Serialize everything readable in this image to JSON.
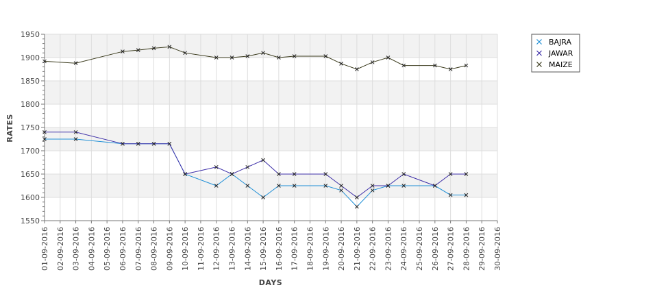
{
  "chart_data": {
    "type": "line",
    "title": "",
    "xlabel": "DAYS",
    "ylabel": "RATES",
    "ylim": [
      1550,
      1950
    ],
    "yticks": [
      1550,
      1600,
      1650,
      1700,
      1750,
      1800,
      1850,
      1900,
      1950
    ],
    "grid": true,
    "legend_position": "top-right",
    "categories": [
      "01-09-2016",
      "02-09-2016",
      "03-09-2016",
      "04-09-2016",
      "05-09-2016",
      "06-09-2016",
      "07-09-2016",
      "08-09-2016",
      "09-09-2016",
      "10-09-2016",
      "11-09-2016",
      "12-09-2016",
      "13-09-2016",
      "14-09-2016",
      "15-09-2016",
      "16-09-2016",
      "17-09-2016",
      "18-09-2016",
      "19-09-2016",
      "20-09-2016",
      "21-09-2016",
      "22-09-2016",
      "23-09-2016",
      "24-09-2016",
      "25-09-2016",
      "26-09-2016",
      "27-09-2016",
      "28-09-2016",
      "29-09-2016",
      "30-09-2016"
    ],
    "series": [
      {
        "name": "BAJRA",
        "color": "#1f8fd6",
        "values": [
          1725,
          null,
          1725,
          null,
          null,
          1715,
          1715,
          1715,
          1715,
          1650,
          null,
          1625,
          1650,
          1625,
          1600,
          1625,
          1625,
          null,
          1625,
          1615,
          1580,
          1615,
          1625,
          1625,
          null,
          1625,
          1605,
          1605,
          null,
          null
        ]
      },
      {
        "name": "JAWAR",
        "color": "#3d2fa8",
        "values": [
          1740,
          null,
          1740,
          null,
          null,
          1715,
          1715,
          1715,
          1715,
          1650,
          null,
          1665,
          1650,
          1665,
          1680,
          1650,
          1650,
          null,
          1650,
          1625,
          1600,
          1625,
          1625,
          1650,
          null,
          1625,
          1650,
          1650,
          null,
          null
        ]
      },
      {
        "name": "MAIZE",
        "color": "#3a3a1c",
        "values": [
          1892,
          null,
          1888,
          null,
          null,
          1913,
          1916,
          1920,
          1923,
          1910,
          null,
          1900,
          1900,
          1903,
          1910,
          1900,
          1903,
          null,
          1903,
          1887,
          1875,
          1890,
          1900,
          1883,
          null,
          1883,
          1875,
          1883,
          null,
          null
        ]
      }
    ]
  }
}
